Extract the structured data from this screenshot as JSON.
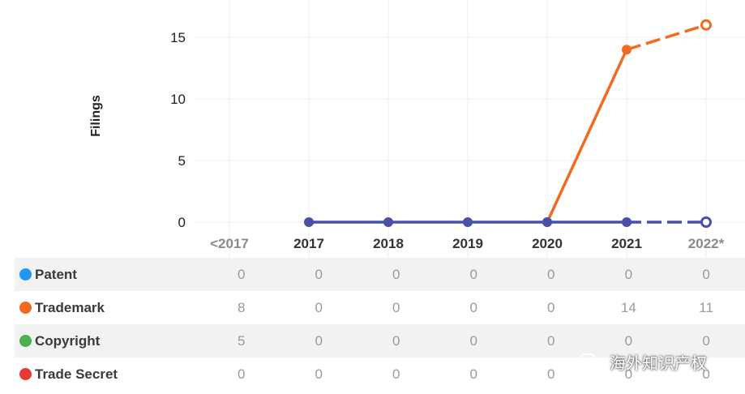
{
  "chart_data": {
    "type": "line",
    "ylabel": "Filings",
    "ylim": [
      0,
      17
    ],
    "yticks": [
      0,
      5,
      10,
      15
    ],
    "categories": [
      "<2017",
      "2017",
      "2018",
      "2019",
      "2020",
      "2021",
      "2022*"
    ],
    "grid": true,
    "series": [
      {
        "name": "Trademark",
        "color": "#f06b21",
        "points": [
          {
            "x": "2020",
            "y": 0
          },
          {
            "x": "2021",
            "y": 14
          },
          {
            "x": "2022*",
            "y": 16,
            "projected": true
          }
        ]
      },
      {
        "name": "Patent",
        "color": "#4a4fa8",
        "points": [
          {
            "x": "2017",
            "y": 0
          },
          {
            "x": "2018",
            "y": 0
          },
          {
            "x": "2019",
            "y": 0
          },
          {
            "x": "2020",
            "y": 0
          },
          {
            "x": "2021",
            "y": 0
          },
          {
            "x": "2022*",
            "y": 0,
            "projected": true
          }
        ]
      }
    ]
  },
  "table": {
    "rows": [
      {
        "label": "Patent",
        "color": "#2196f3",
        "values": [
          "0",
          "0",
          "0",
          "0",
          "0",
          "0",
          "0"
        ]
      },
      {
        "label": "Trademark",
        "color": "#f06b21",
        "values": [
          "8",
          "0",
          "0",
          "0",
          "0",
          "14",
          "11"
        ]
      },
      {
        "label": "Copyright",
        "color": "#4caf50",
        "values": [
          "5",
          "0",
          "0",
          "0",
          "0",
          "0",
          "0"
        ]
      },
      {
        "label": "Trade Secret",
        "color": "#e53935",
        "values": [
          "0",
          "0",
          "0",
          "0",
          "0",
          "0",
          "0"
        ]
      }
    ]
  },
  "watermark": {
    "text": "海外知识产权",
    "icon": "wechat-icon"
  }
}
